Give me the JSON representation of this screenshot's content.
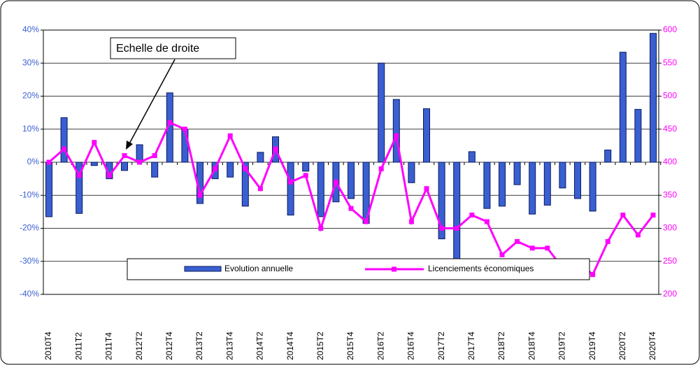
{
  "chart_data": {
    "type": "bar_line",
    "annotation": "Echelle de droite",
    "categories": [
      "2010T4",
      null,
      "2011T2",
      null,
      "2011T4",
      null,
      "2012T2",
      null,
      "2012T4",
      null,
      "2013T2",
      null,
      "2013T4",
      null,
      "2014T2",
      null,
      "2014T4",
      null,
      "2015T2",
      null,
      "2015T4",
      null,
      "2016T2",
      null,
      "2016T4",
      null,
      "2017T2",
      null,
      "2017T4",
      null,
      "2018T2",
      null,
      "2018T4",
      null,
      "2019T2",
      null,
      "2019T4",
      null,
      "2020T2",
      null,
      "2020T4"
    ],
    "series": [
      {
        "name": "Evolution annuelle",
        "type": "bar",
        "color": "#3a5fd0",
        "axis": "y",
        "values": [
          -16.5,
          13.5,
          -15.5,
          -1,
          -5,
          -2.5,
          5.3,
          -4.5,
          21,
          10,
          -12.5,
          -5,
          -4.5,
          -13.3,
          3,
          7.7,
          -16,
          -2.7,
          -16.5,
          -12,
          -11,
          -18.5,
          30,
          19,
          -6.2,
          16.2,
          -23.2,
          -31.7,
          3.2,
          -14,
          -13.3,
          -6.8,
          -15.7,
          -13,
          -7.8,
          -11,
          -14.8,
          3.7,
          33.3,
          16,
          39
        ]
      },
      {
        "name": "Licenciements économiques",
        "type": "line",
        "color": "#ff00ff",
        "axis": "y2",
        "values": [
          400,
          420,
          380,
          430,
          380,
          410,
          400,
          410,
          460,
          450,
          350,
          390,
          440,
          390,
          360,
          420,
          370,
          380,
          300,
          370,
          330,
          310,
          390,
          440,
          310,
          360,
          300,
          300,
          320,
          310,
          260,
          280,
          270,
          270,
          240,
          250,
          230,
          280,
          320,
          290,
          320
        ]
      }
    ],
    "ylim": [
      -40,
      40
    ],
    "yticks": [
      {
        "value": -40,
        "label": "-40%"
      },
      {
        "value": -30,
        "label": "-30%"
      },
      {
        "value": -20,
        "label": "-20%"
      },
      {
        "value": -10,
        "label": "-10%"
      },
      {
        "value": 0,
        "label": "0%"
      },
      {
        "value": 10,
        "label": "10%"
      },
      {
        "value": 20,
        "label": "20%"
      },
      {
        "value": 30,
        "label": "30%"
      },
      {
        "value": 40,
        "label": "40%"
      }
    ],
    "y2lim": [
      200,
      600
    ],
    "y2ticks": [
      200,
      250,
      300,
      350,
      400,
      450,
      500,
      550,
      600
    ],
    "grid": true
  }
}
